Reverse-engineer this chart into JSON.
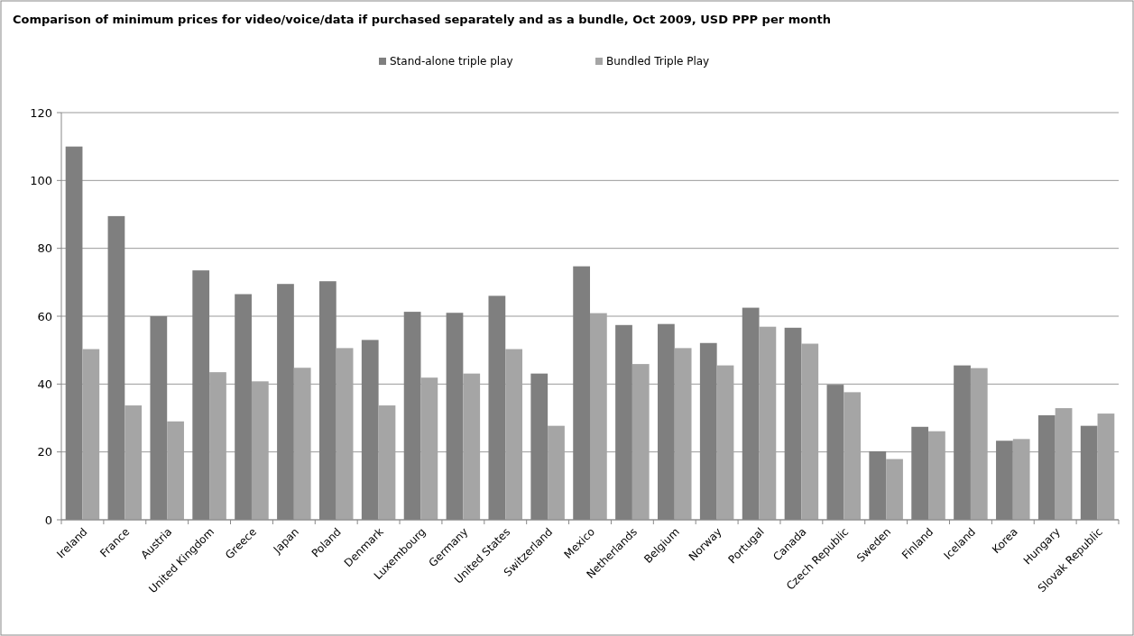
{
  "chart_data": {
    "type": "bar",
    "title": "Comparison of minimum prices for video/voice/data if purchased separately and as a bundle, Oct 2009,  USD PPP per month",
    "categories": [
      "Ireland",
      "France",
      "Austria",
      "United Kingdom",
      "Greece",
      "Japan",
      "Poland",
      "Denmark",
      "Luxembourg",
      "Germany",
      "United States",
      "Switzerland",
      "Mexico",
      "Netherlands",
      "Belgium",
      "Norway",
      "Portugal",
      "Canada",
      "Czech Republic",
      "Sweden",
      "Finland",
      "Iceland",
      "Korea",
      "Hungary",
      "Slovak Republic"
    ],
    "series": [
      {
        "name": "Stand-alone triple play",
        "color": "#7f7f7f",
        "values": [
          110,
          89.5,
          60,
          73.5,
          66.5,
          69.5,
          70.3,
          53,
          61.3,
          61,
          66,
          43.1,
          74.7,
          57.4,
          57.7,
          52.1,
          62.5,
          56.6,
          39.8,
          20.2,
          27.4,
          45.5,
          23.3,
          30.8,
          27.7
        ]
      },
      {
        "name": "Bundled Triple Play",
        "color": "#a5a5a5",
        "values": [
          50.3,
          33.7,
          29,
          43.5,
          40.8,
          44.8,
          50.6,
          33.7,
          41.9,
          43.1,
          50.3,
          27.7,
          60.9,
          45.9,
          50.6,
          45.5,
          56.9,
          51.9,
          37.6,
          17.9,
          26.1,
          44.7,
          23.8,
          32.9,
          31.3
        ]
      }
    ],
    "ylim": [
      0,
      120
    ],
    "yticks": [
      0,
      20,
      40,
      60,
      80,
      100,
      120
    ],
    "grid": "y",
    "legend": "top"
  }
}
